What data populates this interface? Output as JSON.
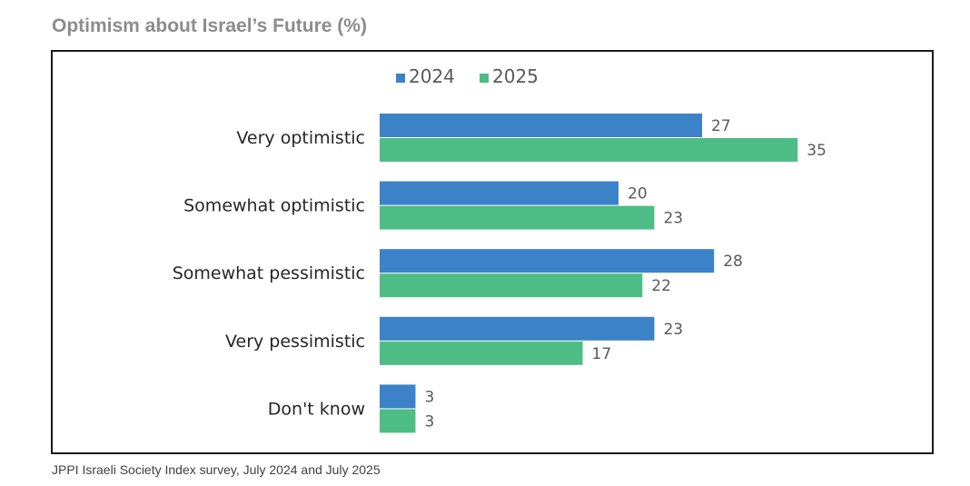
{
  "title": "Optimism about Israel’s Future (%)",
  "source": "JPPI Israeli Society Index survey,  July 2024 and July 2025",
  "colors": {
    "2024": "#3c82c8",
    "2025": "#4ebd85"
  },
  "chart_data": {
    "type": "bar",
    "orientation": "horizontal",
    "title": "Optimism about Israel’s Future (%)",
    "categories": [
      "Very optimistic",
      "Somewhat optimistic",
      "Somewhat pessimistic",
      "Very pessimistic",
      "Don't know"
    ],
    "series": [
      {
        "name": "2024",
        "values": [
          27,
          20,
          28,
          23,
          3
        ]
      },
      {
        "name": "2025",
        "values": [
          35,
          23,
          22,
          17,
          3
        ]
      }
    ],
    "legend": "top-center",
    "grid": false,
    "data_labels": true
  }
}
